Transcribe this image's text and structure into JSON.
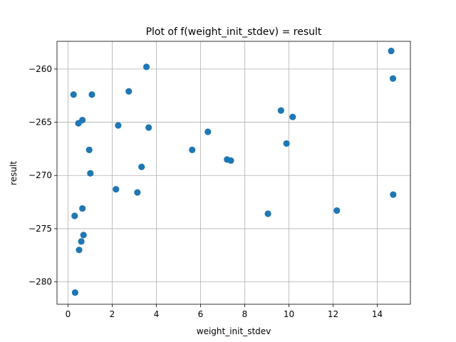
{
  "chart_data": {
    "type": "scatter",
    "title": "Plot of f(weight_init_stdev) = result",
    "xlabel": "weight_init_stdev",
    "ylabel": "result",
    "xlim": [
      -0.5,
      15.5
    ],
    "ylim": [
      -282.1,
      -257.4
    ],
    "xticks": [
      0,
      2,
      4,
      6,
      8,
      10,
      12,
      14
    ],
    "yticks": [
      -280,
      -275,
      -270,
      -265,
      -260
    ],
    "grid": true,
    "marker_color": "#1f77b4",
    "points": [
      {
        "x": 0.25,
        "y": -262.4
      },
      {
        "x": 1.08,
        "y": -262.4
      },
      {
        "x": 3.55,
        "y": -259.8
      },
      {
        "x": 2.75,
        "y": -262.1
      },
      {
        "x": 0.47,
        "y": -265.1
      },
      {
        "x": 0.65,
        "y": -264.8
      },
      {
        "x": 2.27,
        "y": -265.3
      },
      {
        "x": 3.65,
        "y": -265.5
      },
      {
        "x": 0.96,
        "y": -267.6
      },
      {
        "x": 1.01,
        "y": -269.8
      },
      {
        "x": 3.33,
        "y": -269.2
      },
      {
        "x": 2.17,
        "y": -271.3
      },
      {
        "x": 3.14,
        "y": -271.6
      },
      {
        "x": 5.62,
        "y": -267.6
      },
      {
        "x": 6.33,
        "y": -265.9
      },
      {
        "x": 7.2,
        "y": -268.5
      },
      {
        "x": 7.37,
        "y": -268.6
      },
      {
        "x": 9.64,
        "y": -263.9
      },
      {
        "x": 10.17,
        "y": -264.5
      },
      {
        "x": 9.89,
        "y": -267.0
      },
      {
        "x": 0.3,
        "y": -273.8
      },
      {
        "x": 0.65,
        "y": -273.1
      },
      {
        "x": 0.7,
        "y": -275.6
      },
      {
        "x": 0.6,
        "y": -276.2
      },
      {
        "x": 0.5,
        "y": -277.0
      },
      {
        "x": 0.32,
        "y": -281.0
      },
      {
        "x": 9.05,
        "y": -273.6
      },
      {
        "x": 12.17,
        "y": -273.3
      },
      {
        "x": 14.63,
        "y": -258.3
      },
      {
        "x": 14.71,
        "y": -260.9
      },
      {
        "x": 14.72,
        "y": -271.8
      }
    ]
  }
}
